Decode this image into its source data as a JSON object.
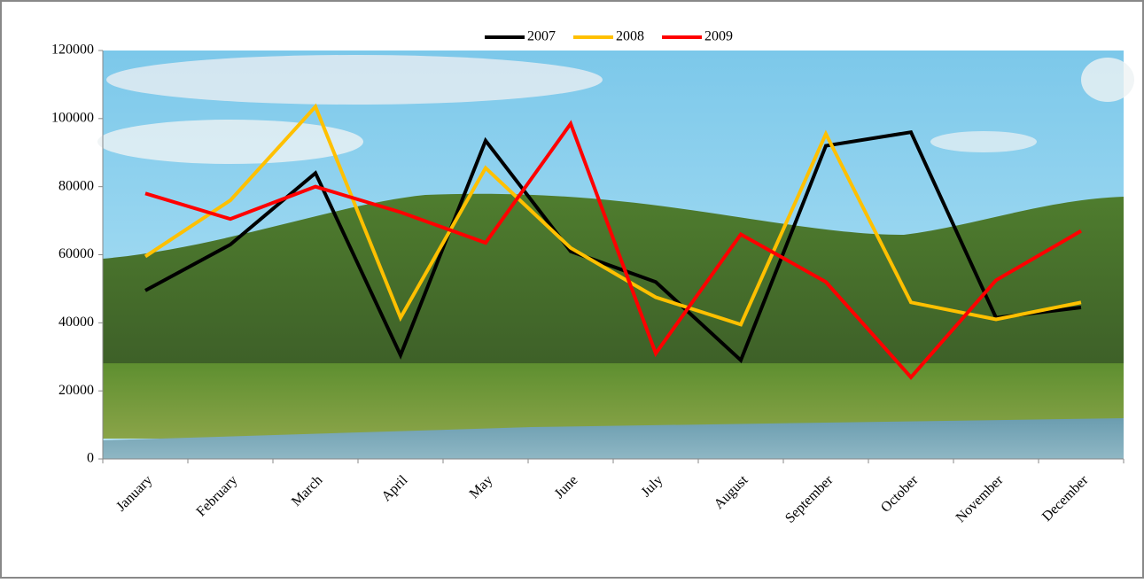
{
  "chart_data": {
    "type": "line",
    "categories": [
      "January",
      "February",
      "March",
      "April",
      "May",
      "June",
      "July",
      "August",
      "September",
      "October",
      "November",
      "December"
    ],
    "series": [
      {
        "name": "2007",
        "color": "#000000",
        "values": [
          49500,
          63000,
          84000,
          30500,
          93500,
          61000,
          52000,
          29000,
          92000,
          96000,
          41500,
          44500
        ]
      },
      {
        "name": "2008",
        "color": "#ffc000",
        "values": [
          59500,
          76000,
          103500,
          41500,
          85500,
          62000,
          47500,
          39500,
          95500,
          46000,
          41000,
          46000
        ]
      },
      {
        "name": "2009",
        "color": "#ff0000",
        "values": [
          78000,
          70500,
          80000,
          72500,
          63500,
          98500,
          31000,
          66000,
          52000,
          24000,
          52500,
          67000
        ]
      }
    ],
    "ylim": [
      0,
      120000
    ],
    "yticks": [
      0,
      20000,
      40000,
      60000,
      80000,
      100000,
      120000
    ],
    "legend": "top",
    "grid": false
  }
}
